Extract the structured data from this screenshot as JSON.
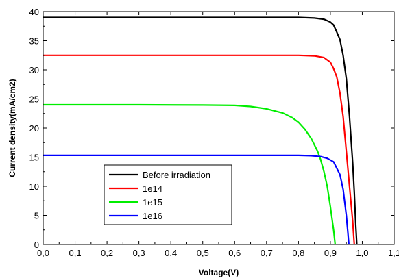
{
  "chart_data": {
    "type": "line",
    "title": "",
    "xlabel": "Voltage(V)",
    "ylabel": "Current density(mA/cm2)",
    "xlim": [
      0.0,
      1.1
    ],
    "ylim": [
      0,
      40
    ],
    "x_ticks": [
      "0,0",
      "0,1",
      "0,2",
      "0,3",
      "0,4",
      "0,5",
      "0,6",
      "0,7",
      "0,8",
      "0,9",
      "1,0",
      "1,1"
    ],
    "y_ticks": [
      "0",
      "5",
      "10",
      "15",
      "20",
      "25",
      "30",
      "35",
      "40"
    ],
    "grid": false,
    "legend_position": "lower-left",
    "series": [
      {
        "name": "Before irradiation",
        "color": "#000000",
        "points": [
          [
            0.0,
            39.0
          ],
          [
            0.2,
            39.0
          ],
          [
            0.4,
            39.0
          ],
          [
            0.6,
            39.0
          ],
          [
            0.8,
            39.0
          ],
          [
            0.85,
            38.9
          ],
          [
            0.88,
            38.7
          ],
          [
            0.9,
            38.2
          ],
          [
            0.91,
            37.7
          ],
          [
            0.92,
            36.5
          ],
          [
            0.93,
            35.2
          ],
          [
            0.94,
            32.5
          ],
          [
            0.95,
            28.5
          ],
          [
            0.96,
            22.0
          ],
          [
            0.97,
            14.0
          ],
          [
            0.975,
            9.0
          ],
          [
            0.98,
            3.0
          ],
          [
            0.983,
            0.0
          ]
        ]
      },
      {
        "name": "1e14",
        "color": "#ff0000",
        "points": [
          [
            0.0,
            32.5
          ],
          [
            0.2,
            32.5
          ],
          [
            0.4,
            32.5
          ],
          [
            0.6,
            32.5
          ],
          [
            0.8,
            32.5
          ],
          [
            0.85,
            32.4
          ],
          [
            0.88,
            32.1
          ],
          [
            0.9,
            31.3
          ],
          [
            0.91,
            30.2
          ],
          [
            0.92,
            28.8
          ],
          [
            0.93,
            26.0
          ],
          [
            0.94,
            22.0
          ],
          [
            0.95,
            16.0
          ],
          [
            0.96,
            10.0
          ],
          [
            0.97,
            4.0
          ],
          [
            0.975,
            0.0
          ]
        ]
      },
      {
        "name": "1e15",
        "color": "#00ee00",
        "points": [
          [
            0.0,
            24.0
          ],
          [
            0.3,
            24.0
          ],
          [
            0.5,
            23.95
          ],
          [
            0.6,
            23.9
          ],
          [
            0.65,
            23.7
          ],
          [
            0.7,
            23.3
          ],
          [
            0.75,
            22.6
          ],
          [
            0.78,
            21.8
          ],
          [
            0.8,
            21.0
          ],
          [
            0.82,
            19.8
          ],
          [
            0.84,
            18.2
          ],
          [
            0.86,
            16.0
          ],
          [
            0.87,
            14.5
          ],
          [
            0.88,
            12.5
          ],
          [
            0.89,
            10.0
          ],
          [
            0.9,
            6.5
          ],
          [
            0.91,
            2.5
          ],
          [
            0.915,
            0.0
          ]
        ]
      },
      {
        "name": "1e16",
        "color": "#0000ff",
        "points": [
          [
            0.0,
            15.3
          ],
          [
            0.4,
            15.3
          ],
          [
            0.6,
            15.3
          ],
          [
            0.8,
            15.3
          ],
          [
            0.84,
            15.25
          ],
          [
            0.87,
            15.1
          ],
          [
            0.89,
            14.8
          ],
          [
            0.91,
            14.2
          ],
          [
            0.93,
            12.0
          ],
          [
            0.94,
            9.5
          ],
          [
            0.95,
            5.0
          ],
          [
            0.955,
            2.0
          ],
          [
            0.958,
            0.0
          ]
        ]
      }
    ]
  }
}
